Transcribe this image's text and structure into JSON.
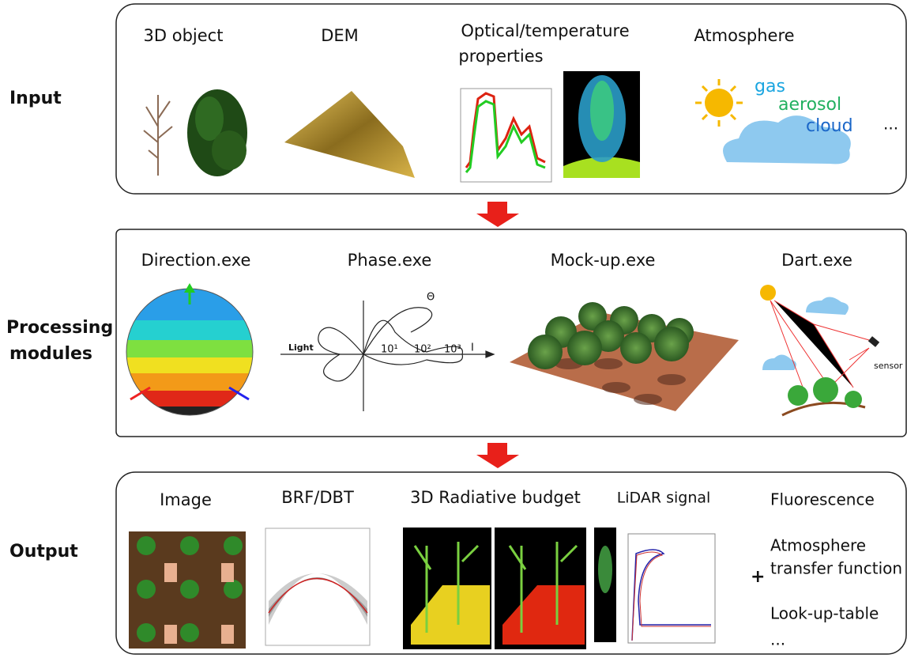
{
  "input": {
    "label": "Input",
    "object": "3D object",
    "dem": "DEM",
    "optical": [
      "Optical/temperature",
      "properties"
    ],
    "atmosphere": "Atmosphere",
    "atmo_parts": [
      "gas",
      "aerosol",
      "cloud"
    ],
    "more": "..."
  },
  "processing": {
    "label": [
      "Processing",
      "modules"
    ],
    "modules": [
      "Direction.exe",
      "Phase.exe",
      "Mock-up.exe",
      "Dart.exe"
    ],
    "phase_labels": {
      "light": "Light",
      "ticks": [
        "10¹",
        "10²",
        "10³"
      ],
      "intensity": "I",
      "angle": "Θ"
    },
    "sensor": "sensor"
  },
  "output": {
    "label": "Output",
    "items": [
      "Image",
      "BRF/DBT",
      "3D Radiative budget",
      "LiDAR signal"
    ],
    "plus": "+",
    "extras": [
      "Fluorescence",
      [
        "Atmosphere",
        "transfer function"
      ],
      "Look-up-table",
      "..."
    ]
  }
}
